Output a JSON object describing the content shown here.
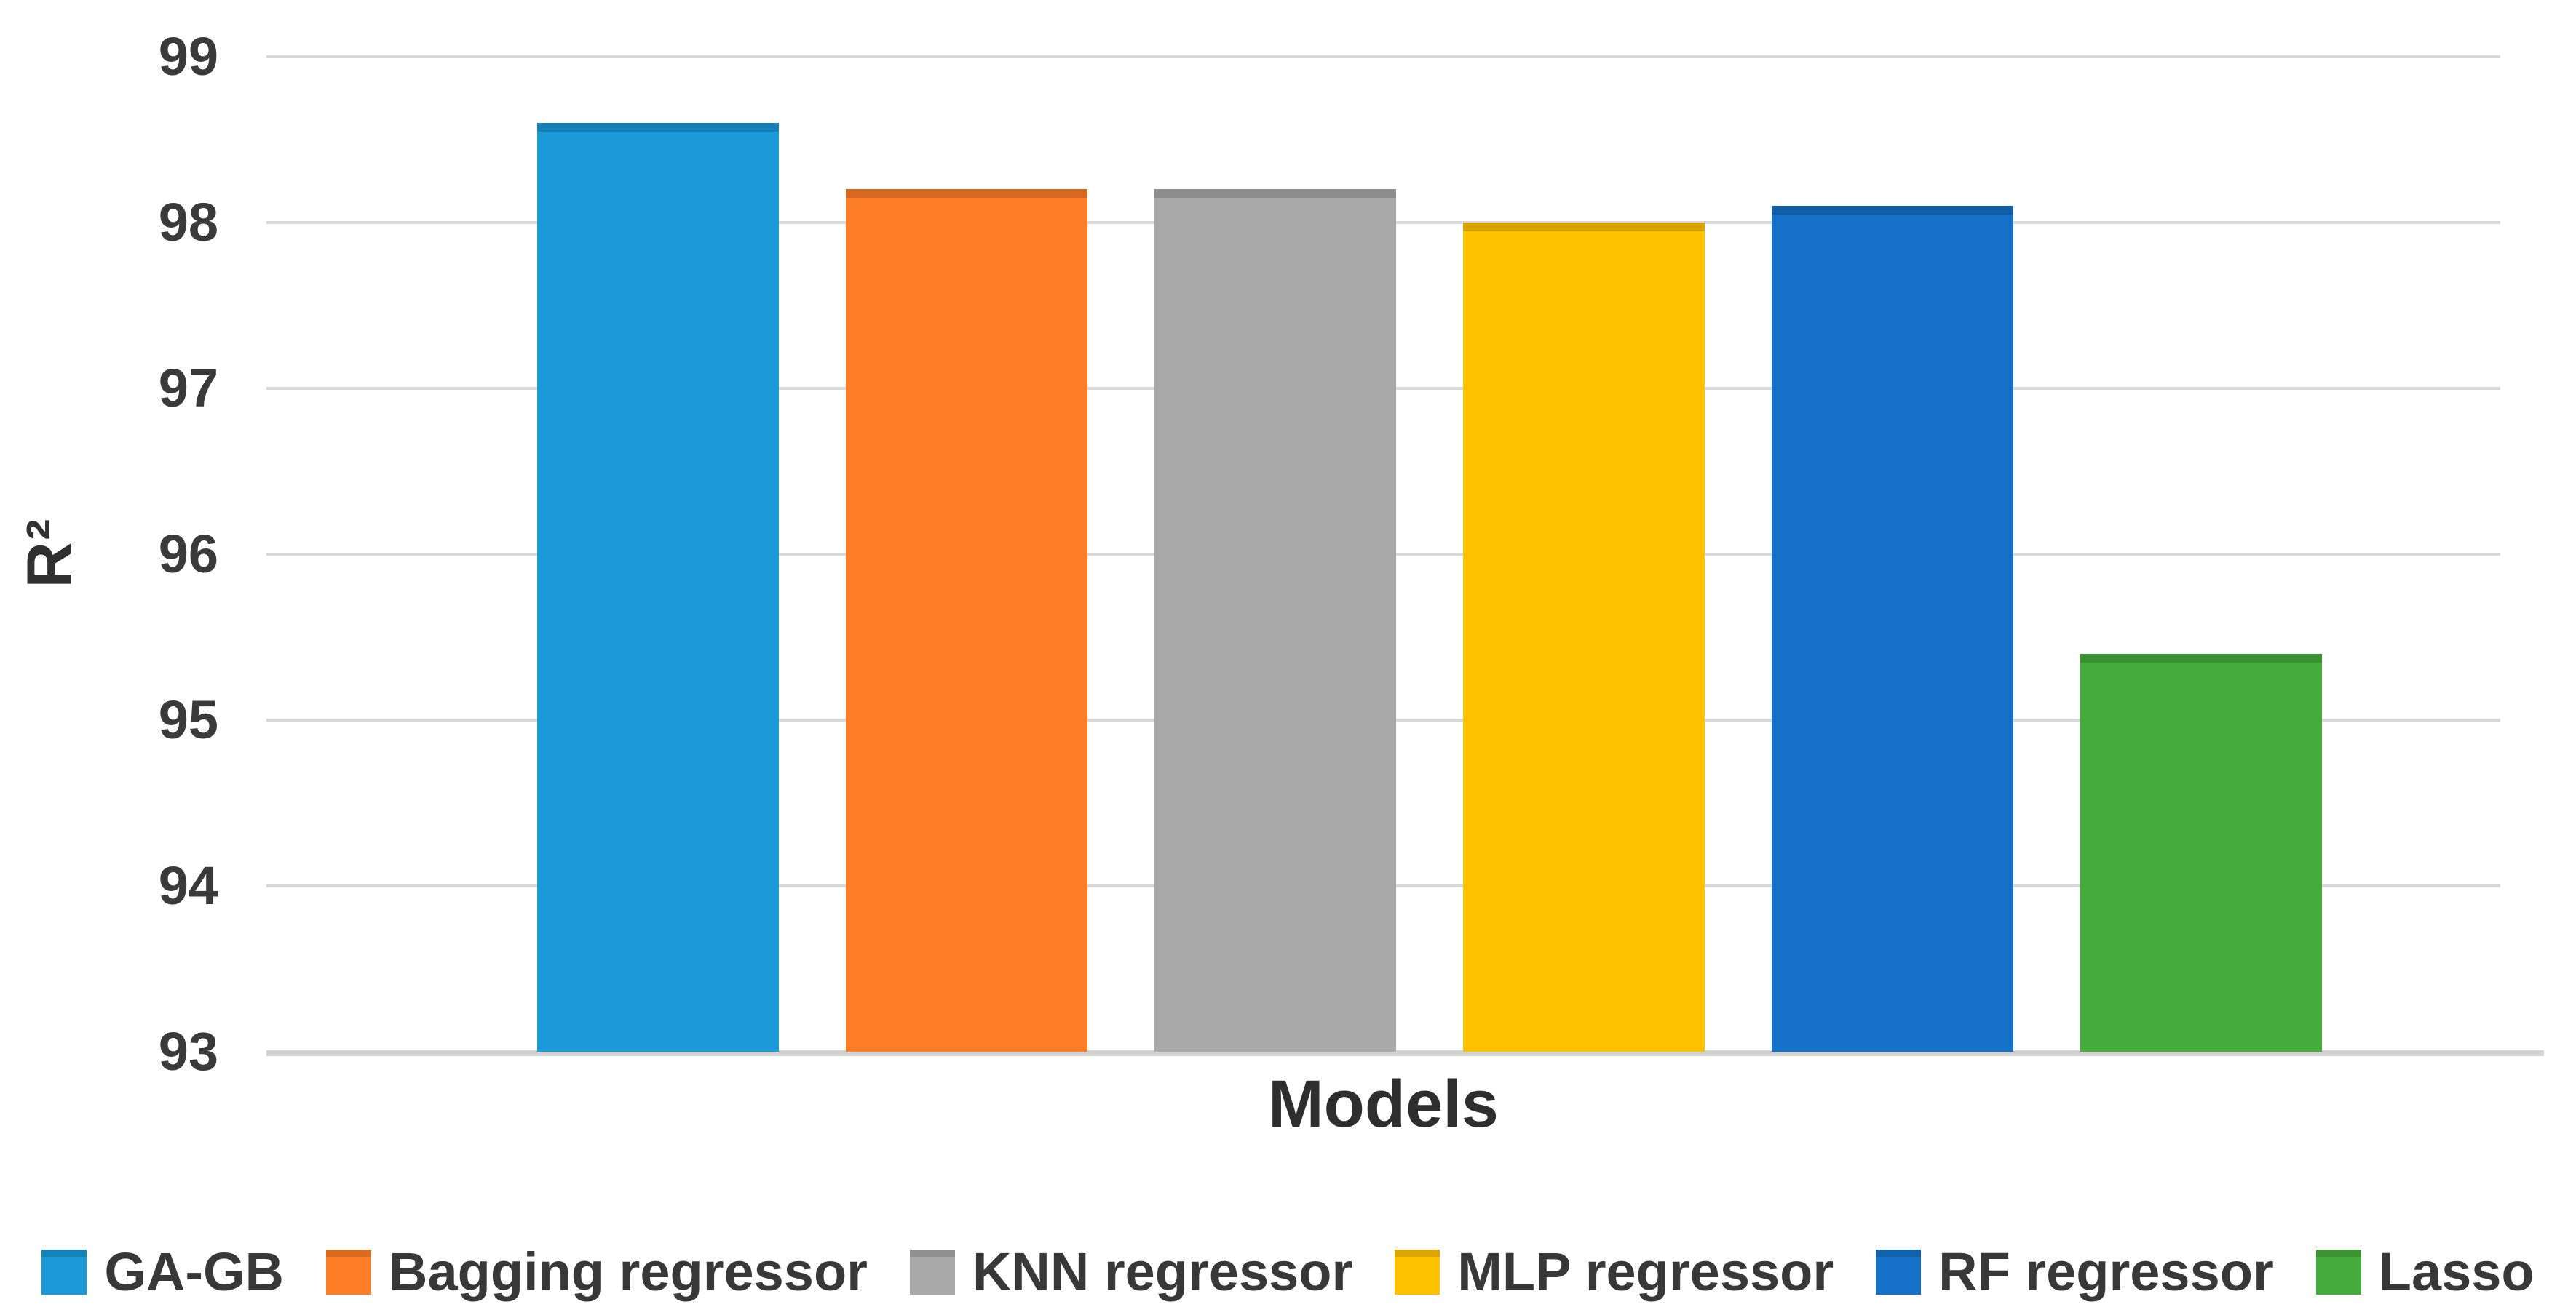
{
  "chart_data": {
    "type": "bar",
    "title": "",
    "xlabel": "Models",
    "ylabel": "R²",
    "ylim": [
      93,
      99
    ],
    "yticks": [
      "99",
      "98",
      "97",
      "96",
      "95",
      "94",
      "93"
    ],
    "grid": true,
    "legend_position": "bottom",
    "categories": [
      "GA-GB",
      "Bagging regressor",
      "KNN regressor",
      "MLP regressor",
      "RF regressor",
      "Lasso"
    ],
    "values": [
      98.6,
      98.2,
      98.2,
      98.0,
      98.1,
      95.4
    ],
    "colors": [
      "#1b9ad7",
      "#fd7e26",
      "#a9a9a9",
      "#ffc203",
      "#1672c8",
      "#45ac3b"
    ],
    "text_colors": {
      "tick": "#3a3a3a",
      "axis_title": "#2e2e2e",
      "legend": "#383838"
    },
    "gridline_color": "#d8d8d8"
  }
}
